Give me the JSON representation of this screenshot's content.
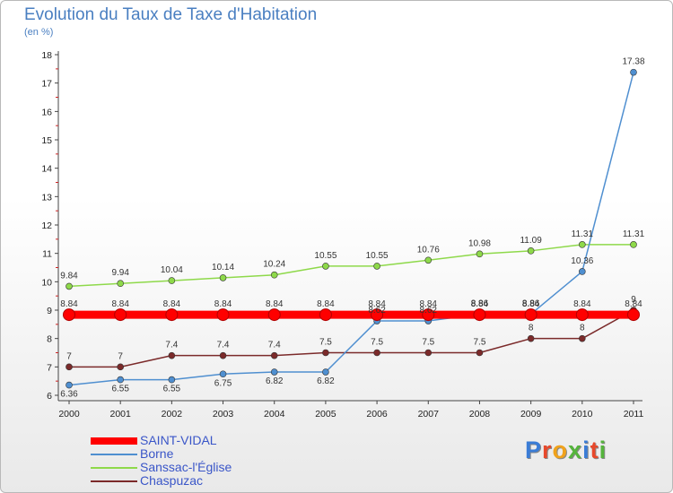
{
  "title": "Evolution du Taux de Taxe d'Habitation",
  "subtitle": "(en %)",
  "logo": "Proxiti",
  "chart_data": {
    "type": "line",
    "title": "Evolution du Taux de Taxe d'Habitation",
    "ylabel": "(en %)",
    "xlabel": "",
    "x": [
      "2000",
      "2001",
      "2002",
      "2003",
      "2004",
      "2005",
      "2006",
      "2007",
      "2008",
      "2009",
      "2010",
      "2011"
    ],
    "ylim": [
      6,
      18
    ],
    "yticks": [
      6,
      7,
      8,
      9,
      10,
      11,
      12,
      13,
      14,
      15,
      16,
      17,
      18
    ],
    "grid": false,
    "legend": "bottom-left",
    "series": [
      {
        "name": "SAINT-VIDAL",
        "color": "#ff0000",
        "values": [
          8.84,
          8.84,
          8.84,
          8.84,
          8.84,
          8.84,
          8.84,
          8.84,
          8.84,
          8.84,
          8.84,
          8.84
        ],
        "labels": [
          "8.84",
          "8.84",
          "8.84",
          "8.84",
          "8.84",
          "8.84",
          "8.84",
          "8.84",
          "8.84",
          "8.84",
          "8.84",
          "8.84"
        ]
      },
      {
        "name": "Borne",
        "color": "#4f8fd0",
        "values": [
          6.36,
          6.55,
          6.55,
          6.75,
          6.82,
          6.82,
          8.62,
          8.62,
          8.86,
          8.86,
          10.36,
          17.38
        ],
        "labels": [
          "6.36",
          "6.55",
          "6.55",
          "6.75",
          "6.82",
          "6.82",
          "8.62",
          "8.62",
          "8.86",
          "8.86",
          "10.36",
          "17.38"
        ]
      },
      {
        "name": "Sanssac-l'Église",
        "color": "#8ed94a",
        "values": [
          9.84,
          9.94,
          10.04,
          10.14,
          10.24,
          10.55,
          10.55,
          10.76,
          10.98,
          11.09,
          11.31,
          11.31
        ],
        "labels": [
          "9.84",
          "9.94",
          "10.04",
          "10.14",
          "10.24",
          "10.55",
          "10.55",
          "10.76",
          "10.98",
          "11.09",
          "11.31",
          "11.31"
        ]
      },
      {
        "name": "Chaspuzac",
        "color": "#7b2a2a",
        "values": [
          7,
          7,
          7.4,
          7.4,
          7.4,
          7.5,
          7.5,
          7.5,
          7.5,
          8,
          8,
          9
        ],
        "labels": [
          "7",
          "7",
          "7.4",
          "7.4",
          "7.4",
          "7.5",
          "7.5",
          "7.5",
          "7.5",
          "8",
          "8",
          "9"
        ]
      }
    ]
  }
}
